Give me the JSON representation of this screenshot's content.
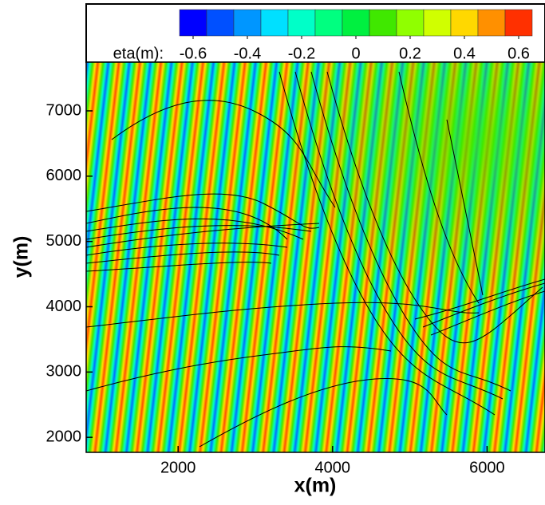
{
  "chart_data": {
    "type": "contour",
    "xlabel": "x(m)",
    "ylabel": "y(m)",
    "xlim": [
      810,
      6750
    ],
    "xticks": [
      2000,
      4000,
      6000
    ],
    "ylim": [
      1770,
      7745
    ],
    "yticks": [
      2000,
      3000,
      4000,
      5000,
      6000,
      7000
    ],
    "colorbar": {
      "label": "eta(m):",
      "lim": [
        -0.65,
        0.65
      ],
      "levels": [
        -0.6,
        -0.5,
        -0.4,
        -0.3,
        -0.2,
        -0.1,
        0,
        0.1,
        0.2,
        0.3,
        0.4,
        0.5,
        0.6
      ],
      "colors": [
        "#0000ff",
        "#0050ff",
        "#0096ff",
        "#00e0ff",
        "#00ffc8",
        "#00ff80",
        "#00f040",
        "#40e800",
        "#90ff00",
        "#d0ff00",
        "#ffd800",
        "#ff9000",
        "#ff3000"
      ],
      "ticks": [
        -0.6,
        -0.4,
        -0.2,
        0,
        0.2,
        0.4,
        0.6
      ]
    }
  }
}
